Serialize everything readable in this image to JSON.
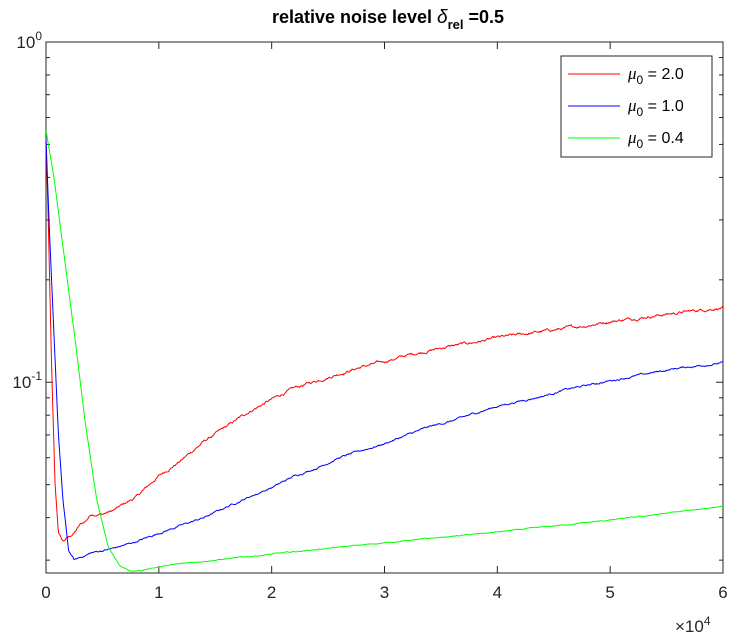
{
  "chart_data": {
    "type": "line",
    "title": {
      "prefix": "relative noise level ",
      "symbol": "δ",
      "subscript": "rel",
      "suffix": " =0.5"
    },
    "xlabel": "",
    "ylabel": "",
    "x_scale": "linear",
    "y_scale": "log",
    "xlim": [
      0,
      60000
    ],
    "ylim": [
      0.0275,
      1
    ],
    "x_ticks": [
      {
        "value": 0,
        "label": "0"
      },
      {
        "value": 10000,
        "label": "1"
      },
      {
        "value": 20000,
        "label": "2"
      },
      {
        "value": 30000,
        "label": "3"
      },
      {
        "value": 40000,
        "label": "4"
      },
      {
        "value": 50000,
        "label": "5"
      },
      {
        "value": 60000,
        "label": "6"
      }
    ],
    "x_exponent": {
      "base": "×10",
      "power": "4"
    },
    "y_ticks": [
      {
        "value": 1,
        "base": "10",
        "power": "0"
      },
      {
        "value": 0.1,
        "base": "10",
        "power": "-1"
      }
    ],
    "grid": false,
    "legend_position": "top-right",
    "series": [
      {
        "name": "μ0 = 2.0",
        "label": {
          "symbol": "μ",
          "subscript": "0",
          "rest": " = 2.0"
        },
        "color": "#ff0000",
        "noise": 0.006,
        "points": [
          [
            0,
            0.52
          ],
          [
            200,
            0.3
          ],
          [
            500,
            0.11
          ],
          [
            800,
            0.05
          ],
          [
            1100,
            0.036
          ],
          [
            1500,
            0.034
          ],
          [
            2000,
            0.035
          ],
          [
            2500,
            0.036
          ],
          [
            3000,
            0.038
          ],
          [
            3500,
            0.039
          ],
          [
            4000,
            0.041
          ],
          [
            5000,
            0.041
          ],
          [
            6000,
            0.042
          ],
          [
            7000,
            0.044
          ],
          [
            8000,
            0.046
          ],
          [
            10000,
            0.053
          ],
          [
            12000,
            0.059
          ],
          [
            14000,
            0.067
          ],
          [
            16000,
            0.074
          ],
          [
            18000,
            0.082
          ],
          [
            20000,
            0.089
          ],
          [
            22000,
            0.096
          ],
          [
            24000,
            0.101
          ],
          [
            26000,
            0.106
          ],
          [
            28000,
            0.111
          ],
          [
            30000,
            0.115
          ],
          [
            32000,
            0.12
          ],
          [
            34000,
            0.124
          ],
          [
            36000,
            0.128
          ],
          [
            38000,
            0.131
          ],
          [
            40000,
            0.135
          ],
          [
            42000,
            0.138
          ],
          [
            44000,
            0.141
          ],
          [
            46000,
            0.144
          ],
          [
            48000,
            0.147
          ],
          [
            50000,
            0.151
          ],
          [
            52000,
            0.154
          ],
          [
            54000,
            0.157
          ],
          [
            56000,
            0.16
          ],
          [
            58000,
            0.163
          ],
          [
            60000,
            0.166
          ]
        ]
      },
      {
        "name": "μ0 = 1.0",
        "label": {
          "symbol": "μ",
          "subscript": "0",
          "rest": " = 1.0"
        },
        "color": "#0000ff",
        "noise": 0.004,
        "points": [
          [
            0,
            0.52
          ],
          [
            300,
            0.28
          ],
          [
            700,
            0.14
          ],
          [
            1100,
            0.07
          ],
          [
            1500,
            0.045
          ],
          [
            2000,
            0.032
          ],
          [
            2500,
            0.03
          ],
          [
            3000,
            0.0305
          ],
          [
            4000,
            0.0315
          ],
          [
            5000,
            0.032
          ],
          [
            6000,
            0.0325
          ],
          [
            8000,
            0.034
          ],
          [
            10000,
            0.036
          ],
          [
            12000,
            0.038
          ],
          [
            14000,
            0.04
          ],
          [
            16000,
            0.043
          ],
          [
            18000,
            0.046
          ],
          [
            20000,
            0.049
          ],
          [
            22000,
            0.053
          ],
          [
            24000,
            0.056
          ],
          [
            26000,
            0.06
          ],
          [
            28000,
            0.063
          ],
          [
            30000,
            0.066
          ],
          [
            32000,
            0.07
          ],
          [
            34000,
            0.074
          ],
          [
            36000,
            0.077
          ],
          [
            38000,
            0.081
          ],
          [
            40000,
            0.085
          ],
          [
            42000,
            0.088
          ],
          [
            44000,
            0.091
          ],
          [
            46000,
            0.095
          ],
          [
            48000,
            0.098
          ],
          [
            50000,
            0.101
          ],
          [
            52000,
            0.104
          ],
          [
            54000,
            0.107
          ],
          [
            56000,
            0.11
          ],
          [
            58000,
            0.112
          ],
          [
            60000,
            0.114
          ]
        ]
      },
      {
        "name": "μ0 = 0.4",
        "label": {
          "symbol": "μ",
          "subscript": "0",
          "rest": " = 0.4"
        },
        "color": "#00ff00",
        "noise": 0.002,
        "points": [
          [
            0,
            0.55
          ],
          [
            700,
            0.4
          ],
          [
            1500,
            0.25
          ],
          [
            2500,
            0.14
          ],
          [
            3500,
            0.075
          ],
          [
            4500,
            0.045
          ],
          [
            5500,
            0.033
          ],
          [
            6500,
            0.029
          ],
          [
            7500,
            0.0278
          ],
          [
            8500,
            0.028
          ],
          [
            9500,
            0.0285
          ],
          [
            11000,
            0.029
          ],
          [
            13000,
            0.0296
          ],
          [
            15000,
            0.03
          ],
          [
            17000,
            0.0305
          ],
          [
            19000,
            0.031
          ],
          [
            21000,
            0.0315
          ],
          [
            23000,
            0.032
          ],
          [
            25000,
            0.0325
          ],
          [
            27000,
            0.033
          ],
          [
            29000,
            0.0335
          ],
          [
            31000,
            0.034
          ],
          [
            33000,
            0.0345
          ],
          [
            35000,
            0.035
          ],
          [
            37000,
            0.0355
          ],
          [
            39000,
            0.036
          ],
          [
            41000,
            0.0366
          ],
          [
            43000,
            0.0372
          ],
          [
            45000,
            0.0378
          ],
          [
            47000,
            0.0384
          ],
          [
            49000,
            0.039
          ],
          [
            51000,
            0.0397
          ],
          [
            53000,
            0.0404
          ],
          [
            55000,
            0.0412
          ],
          [
            57000,
            0.042
          ],
          [
            59000,
            0.0428
          ],
          [
            60000,
            0.0432
          ]
        ]
      }
    ]
  }
}
